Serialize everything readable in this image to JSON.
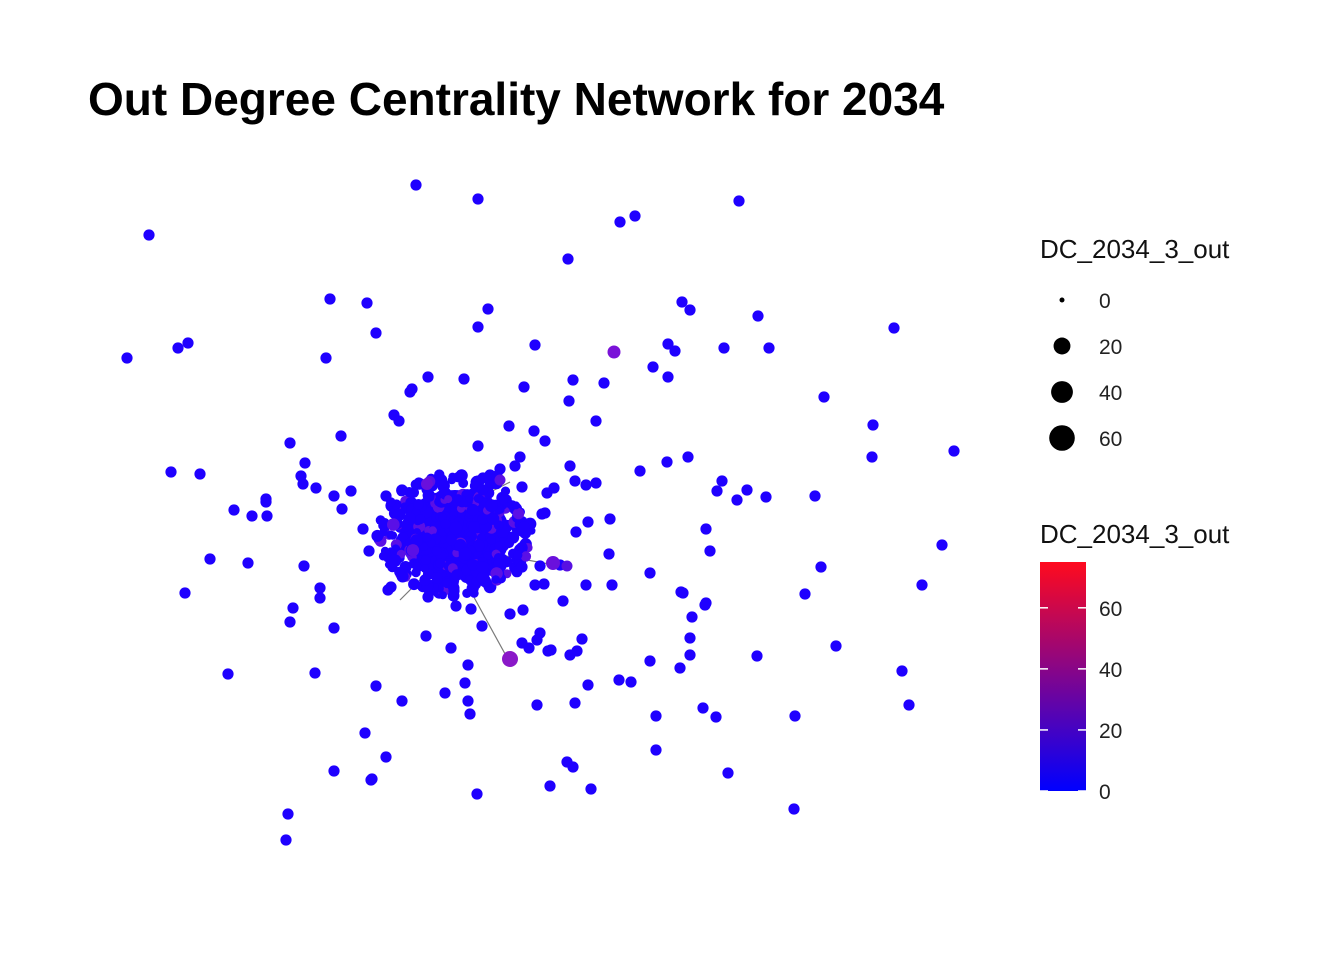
{
  "title": "Out Degree Centrality Network for 2034",
  "legend_size": {
    "title": "DC_2034_3_out",
    "entries": [
      {
        "label": "0",
        "value": 0
      },
      {
        "label": "20",
        "value": 20
      },
      {
        "label": "40",
        "value": 40
      },
      {
        "label": "60",
        "value": 60
      }
    ]
  },
  "legend_color": {
    "title": "DC_2034_3_out",
    "min": 0,
    "max": 75,
    "low_color": "#0000ff",
    "high_color": "#ff0a1e",
    "ticks": [
      {
        "label": "0",
        "value": 0
      },
      {
        "label": "20",
        "value": 20
      },
      {
        "label": "40",
        "value": 40
      },
      {
        "label": "60",
        "value": 60
      }
    ]
  },
  "colors": {
    "node_low": "#1f00ff",
    "edge": "#7a7a7a"
  }
}
